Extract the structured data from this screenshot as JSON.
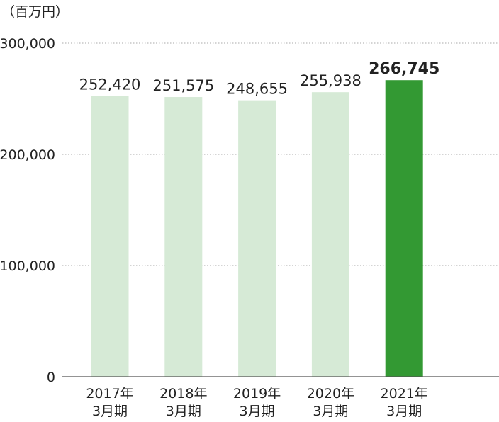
{
  "chart_data": {
    "type": "bar",
    "unit_label": "（百万円）",
    "categories": [
      [
        "2017年",
        "3月期"
      ],
      [
        "2018年",
        "3月期"
      ],
      [
        "2019年",
        "3月期"
      ],
      [
        "2020年",
        "3月期"
      ],
      [
        "2021年",
        "3月期"
      ]
    ],
    "values": [
      252420,
      251575,
      248655,
      255938,
      266745
    ],
    "value_labels": [
      "252,420",
      "251,575",
      "248,655",
      "255,938",
      "266,745"
    ],
    "highlight_index": 4,
    "ylim": [
      0,
      300000
    ],
    "y_ticks": [
      0,
      100000,
      200000,
      300000
    ],
    "y_tick_labels": [
      "0",
      "100,000",
      "200,000",
      "300,000"
    ],
    "grid": "dotted horizontal",
    "colors": {
      "bar": "#d6ead6",
      "highlight": "#339933",
      "text": "#222222",
      "grid": "#aaaaaa",
      "axis": "#555555"
    }
  }
}
